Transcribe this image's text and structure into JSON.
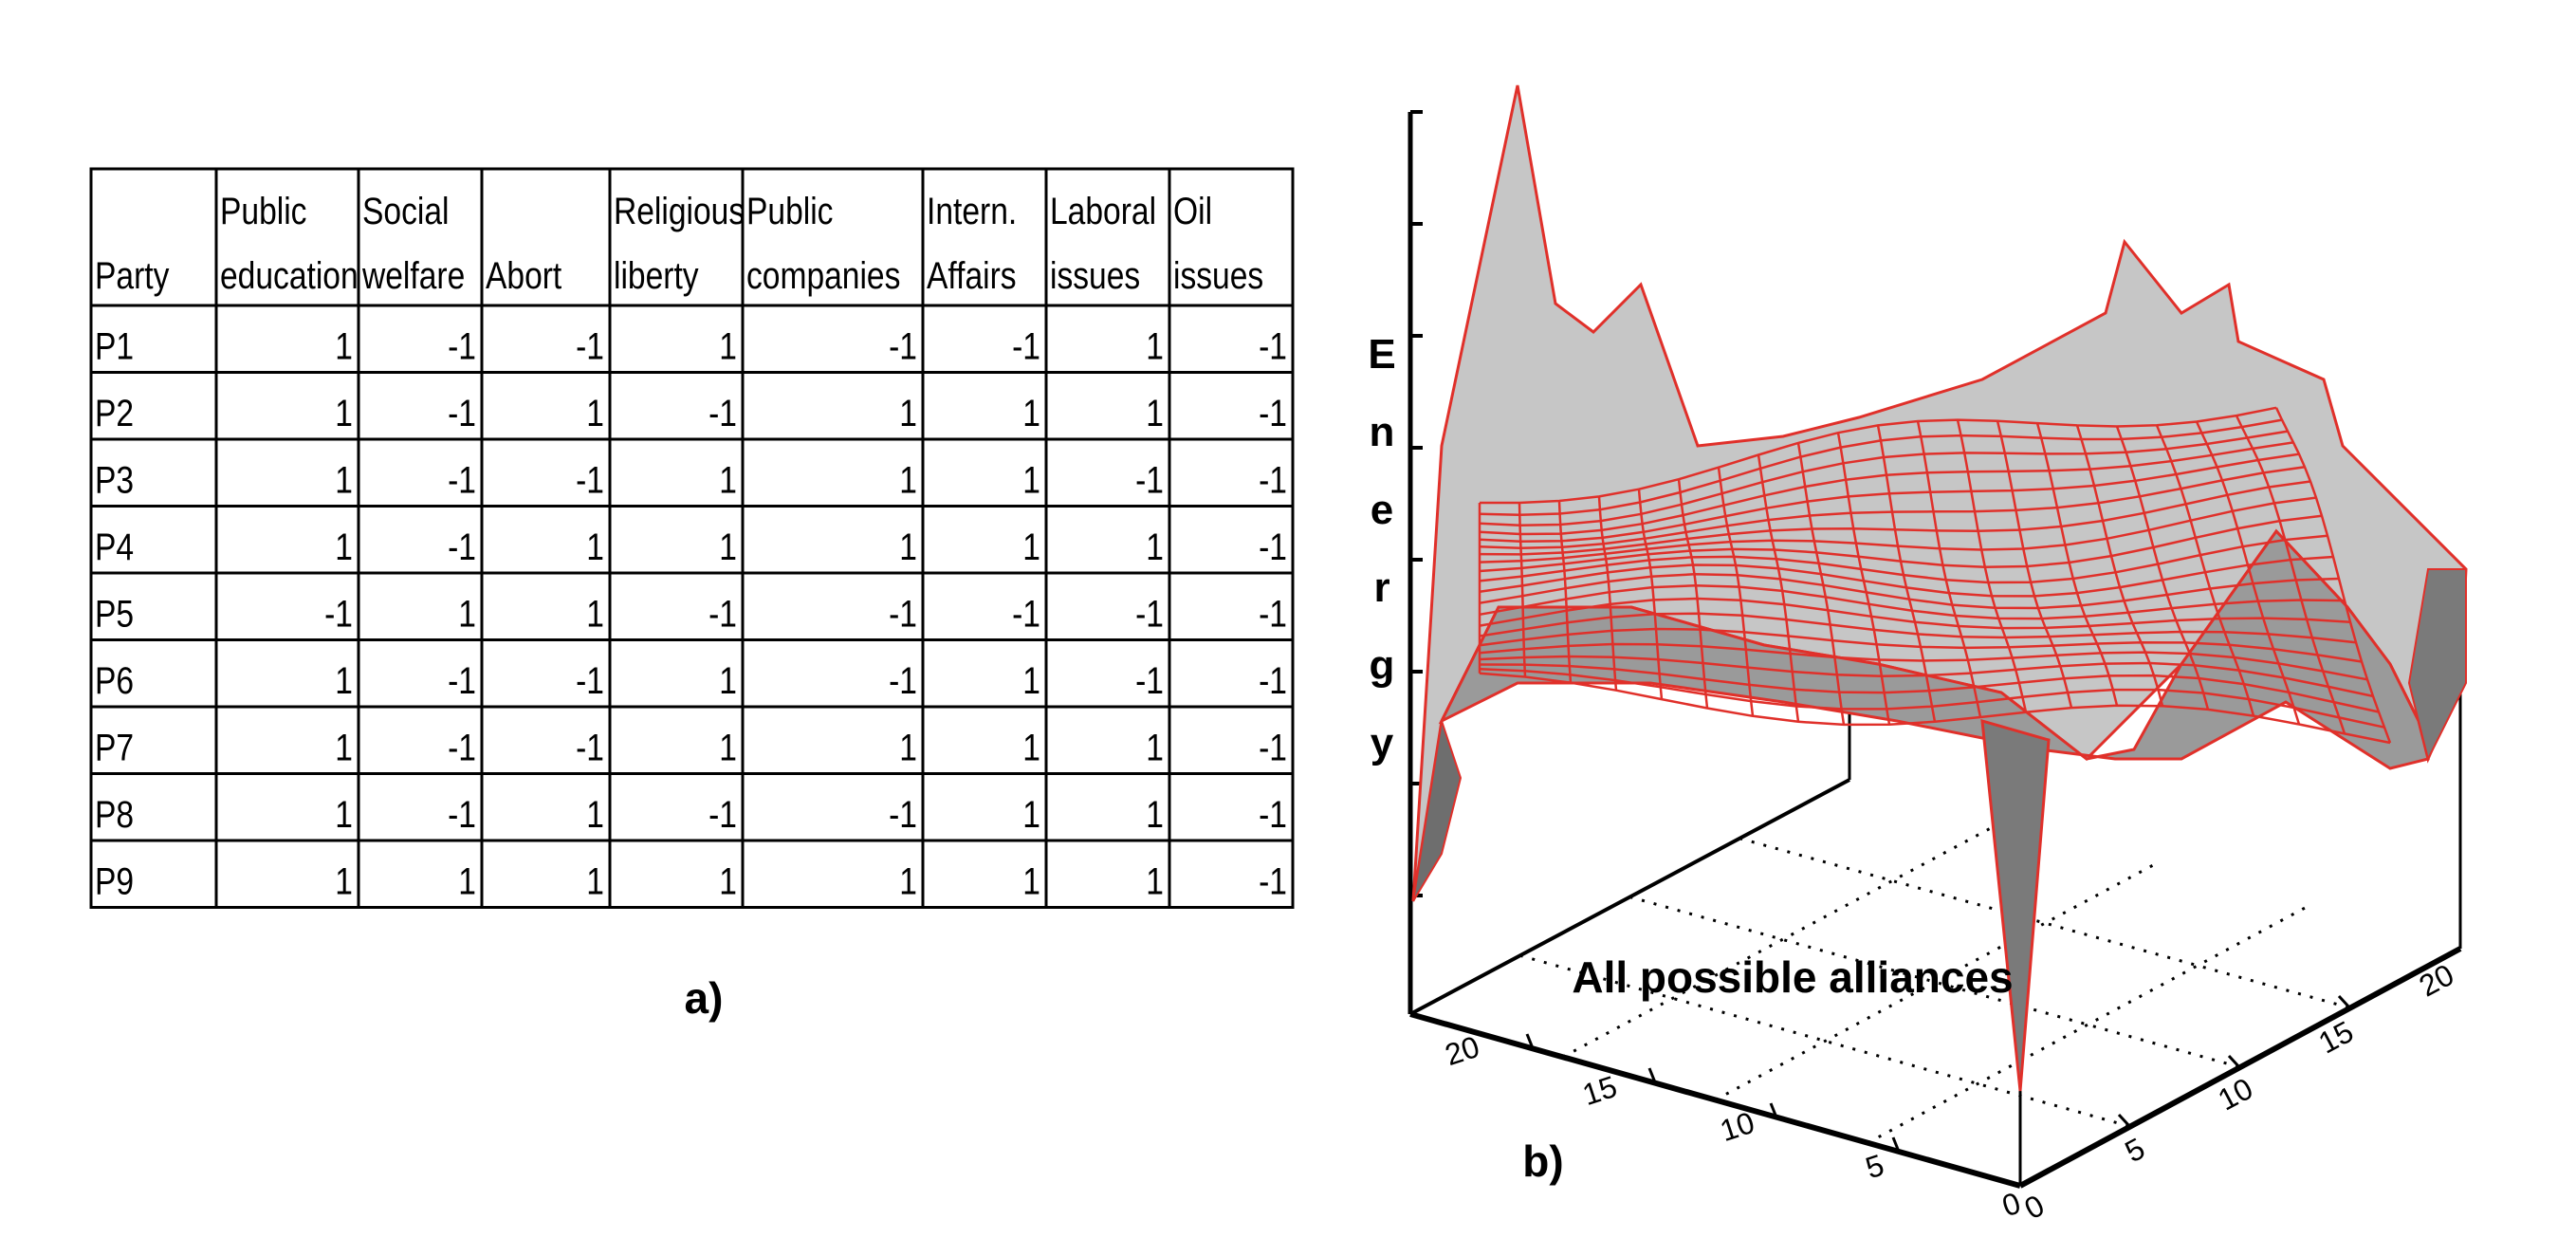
{
  "table": {
    "headers": [
      [
        "Party"
      ],
      [
        "Public",
        "education"
      ],
      [
        "Social",
        "welfare"
      ],
      [
        "Abort"
      ],
      [
        "Religious",
        "liberty"
      ],
      [
        "Public",
        "companies"
      ],
      [
        "Intern.",
        "Affairs"
      ],
      [
        "Laboral",
        "issues"
      ],
      [
        "Oil",
        "issues"
      ]
    ],
    "rows": [
      {
        "party": "P1",
        "values": [
          "1",
          "-1",
          "-1",
          "1",
          "-1",
          "-1",
          "1",
          "-1"
        ]
      },
      {
        "party": "P2",
        "values": [
          "1",
          "-1",
          "1",
          "-1",
          "1",
          "1",
          "1",
          "-1"
        ]
      },
      {
        "party": "P3",
        "values": [
          "1",
          "-1",
          "-1",
          "1",
          "1",
          "1",
          "-1",
          "-1"
        ]
      },
      {
        "party": "P4",
        "values": [
          "1",
          "-1",
          "1",
          "1",
          "1",
          "1",
          "1",
          "-1"
        ]
      },
      {
        "party": "P5",
        "values": [
          "-1",
          "1",
          "1",
          "-1",
          "-1",
          "-1",
          "-1",
          "-1"
        ]
      },
      {
        "party": "P6",
        "values": [
          "1",
          "-1",
          "-1",
          "1",
          "-1",
          "1",
          "-1",
          "-1"
        ]
      },
      {
        "party": "P7",
        "values": [
          "1",
          "-1",
          "-1",
          "1",
          "1",
          "1",
          "1",
          "-1"
        ]
      },
      {
        "party": "P8",
        "values": [
          "1",
          "-1",
          "1",
          "-1",
          "-1",
          "1",
          "1",
          "-1"
        ]
      },
      {
        "party": "P9",
        "values": [
          "1",
          "1",
          "1",
          "1",
          "1",
          "1",
          "1",
          "-1"
        ]
      }
    ]
  },
  "panel_a_label": "a)",
  "panel_b_label": "b)",
  "surface": {
    "z_label": [
      "E",
      "n",
      "e",
      "r",
      "g",
      "y"
    ],
    "base_label": "All possible alliances",
    "left_axis_ticks": [
      "20",
      "15",
      "10",
      "5",
      "0"
    ],
    "right_axis_ticks": [
      "0",
      "5",
      "10",
      "15",
      "20"
    ],
    "colors": {
      "mesh": "#e0302a",
      "surface_light": "#cfcfcf",
      "surface_dark": "#8a8a8a",
      "axis": "#000000"
    }
  }
}
